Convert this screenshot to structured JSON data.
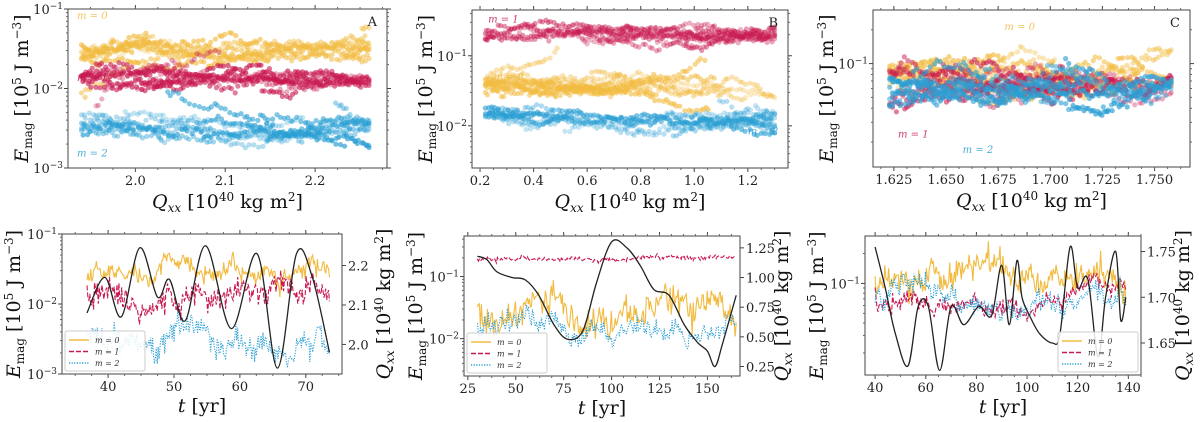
{
  "colors": {
    "m0": "#f2bb40",
    "m1": "#c8184f",
    "m2": "#2a9fd4",
    "qxx": "#222222"
  },
  "chart_data": [
    {
      "id": "A",
      "type": "scatter",
      "panel_label": "A",
      "xlabel": "Q_xx [10^40 kg m^2]",
      "ylabel": "E_mag [10^5 J m^-3]",
      "xlim": [
        1.925,
        2.28
      ],
      "ylim": [
        0.001,
        0.1
      ],
      "yscale": "log",
      "xticks": [
        2.0,
        2.1,
        2.2
      ],
      "xtick_labels": [
        "2.0",
        "2.1",
        "2.2"
      ],
      "yticks": [
        0.001,
        0.01,
        0.1
      ],
      "ytick_labels": [
        "10^-3",
        "10^-2",
        "10^-1"
      ],
      "series_labels": [
        {
          "name": "m = 0",
          "color_key": "m0",
          "pos": [
            1.935,
            0.075
          ]
        },
        {
          "name": "m = 1",
          "color_key": "m1",
          "pos": [
            1.935,
            0.0125
          ]
        },
        {
          "name": "m = 2",
          "color_key": "m2",
          "pos": [
            1.935,
            0.0014
          ]
        }
      ],
      "series": [
        {
          "name": "m = 0",
          "x_range": [
            1.94,
            2.26
          ],
          "y_center": 0.032,
          "y_spread": 0.45
        },
        {
          "name": "m = 1",
          "x_range": [
            1.94,
            2.26
          ],
          "y_center": 0.013,
          "y_spread": 0.4
        },
        {
          "name": "m = 2",
          "x_range": [
            1.94,
            2.26
          ],
          "y_center": 0.0033,
          "y_spread": 0.35
        }
      ]
    },
    {
      "id": "B",
      "type": "scatter",
      "panel_label": "B",
      "xlabel": "Q_xx [10^40 kg m^2]",
      "ylabel": "E_mag [10^5 J m^-3]",
      "xlim": [
        0.17,
        1.35
      ],
      "ylim": [
        0.0025,
        0.45
      ],
      "yscale": "log",
      "xticks": [
        0.2,
        0.4,
        0.6,
        0.8,
        1.0,
        1.2
      ],
      "xtick_labels": [
        "0.2",
        "0.4",
        "0.6",
        "0.8",
        "1.0",
        "1.2"
      ],
      "yticks": [
        0.01,
        0.1
      ],
      "ytick_labels": [
        "10^-2",
        "10^-1"
      ],
      "series_labels": [
        {
          "name": "m = 1",
          "color_key": "m1",
          "pos": [
            0.23,
            0.3
          ]
        },
        {
          "name": "m = 0",
          "color_key": "m0",
          "pos": [
            0.25,
            0.045
          ]
        },
        {
          "name": "m = 2",
          "color_key": "m2",
          "pos": [
            1.2,
            0.0075
          ]
        }
      ],
      "series": [
        {
          "name": "m = 1",
          "x_range": [
            0.22,
            1.3
          ],
          "y_center": 0.2,
          "y_spread": 0.08
        },
        {
          "name": "m = 0",
          "x_range": [
            0.22,
            1.3
          ],
          "y_center": 0.035,
          "y_spread": 0.5
        },
        {
          "name": "m = 2",
          "x_range": [
            0.22,
            1.3
          ],
          "y_center": 0.012,
          "y_spread": 0.35
        }
      ]
    },
    {
      "id": "C",
      "type": "scatter",
      "panel_label": "C",
      "xlabel": "Q_xx [10^40 kg m^2]",
      "ylabel": "E_mag [10^5 J m^-3]",
      "xlim": [
        1.615,
        1.767
      ],
      "ylim": [
        0.012,
        0.3
      ],
      "yscale": "log",
      "xticks": [
        1.625,
        1.65,
        1.675,
        1.7,
        1.725,
        1.75
      ],
      "xtick_labels": [
        "1.625",
        "1.650",
        "1.675",
        "1.700",
        "1.725",
        "1.750"
      ],
      "yticks": [
        0.1
      ],
      "ytick_labels": [
        "10^-1"
      ],
      "series_labels": [
        {
          "name": "m = 0",
          "color_key": "m0",
          "pos": [
            1.678,
            0.2
          ]
        },
        {
          "name": "m = 1",
          "color_key": "m1",
          "pos": [
            1.627,
            0.022
          ]
        },
        {
          "name": "m = 2",
          "color_key": "m2",
          "pos": [
            1.658,
            0.016
          ]
        }
      ],
      "series": [
        {
          "name": "m = 0",
          "x_range": [
            1.623,
            1.758
          ],
          "y_center": 0.08,
          "y_spread": 0.25
        },
        {
          "name": "m = 1",
          "x_range": [
            1.623,
            1.758
          ],
          "y_center": 0.065,
          "y_spread": 0.2
        },
        {
          "name": "m = 2",
          "x_range": [
            1.623,
            1.758
          ],
          "y_center": 0.06,
          "y_spread": 0.22
        }
      ]
    },
    {
      "id": "D",
      "type": "line",
      "xlabel": "t [yr]",
      "ylabel": "E_mag [10^5 J m^-3]",
      "y2label": "Q_xx [10^40 kg m^2]",
      "xlim": [
        33,
        75.5
      ],
      "ylim": [
        0.001,
        0.1
      ],
      "yscale": "log",
      "y2lim": [
        1.925,
        2.28
      ],
      "xticks": [
        40,
        50,
        60,
        70
      ],
      "xtick_labels": [
        "40",
        "50",
        "60",
        "70"
      ],
      "yticks": [
        0.001,
        0.01,
        0.1
      ],
      "ytick_labels": [
        "10^-3",
        "10^-2",
        "10^-1"
      ],
      "y2ticks": [
        2.0,
        2.1,
        2.2
      ],
      "y2tick_labels": [
        "2.0",
        "2.1",
        "2.2"
      ],
      "legend": {
        "position": "lower-left",
        "entries": [
          "m = 0",
          "m = 1",
          "m = 2"
        ]
      },
      "t_range": [
        36.8,
        73.6
      ],
      "series": [
        {
          "name": "m = 0",
          "style": "solid",
          "y_center": 0.028,
          "y_spread": 0.25
        },
        {
          "name": "m = 1",
          "style": "dashed",
          "y_center": 0.013,
          "y_spread": 0.3
        },
        {
          "name": "m = 2",
          "style": "dotted",
          "y_center": 0.0035,
          "y_spread": 0.3
        }
      ],
      "qxx": {
        "t": [
          36.8,
          39.5,
          42,
          44.8,
          47.5,
          49.3,
          51.7,
          54.8,
          58.7,
          62.6,
          65.7,
          68.6,
          71,
          73.6
        ],
        "values": [
          2.08,
          2.17,
          2.07,
          2.245,
          2.12,
          2.165,
          2.06,
          2.25,
          2.04,
          2.23,
          1.94,
          2.23,
          2.17,
          1.98
        ]
      }
    },
    {
      "id": "E",
      "type": "line",
      "xlabel": "t [yr]",
      "ylabel": "E_mag [10^5 J m^-3]",
      "y2label": "Q_xx [10^40 kg m^2]",
      "xlim": [
        23,
        167
      ],
      "ylim": [
        0.0025,
        0.45
      ],
      "yscale": "log",
      "y2lim": [
        0.17,
        1.35
      ],
      "xticks": [
        25,
        50,
        75,
        100,
        125,
        150
      ],
      "xtick_labels": [
        "25",
        "50",
        "75",
        "100",
        "125",
        "150"
      ],
      "yticks": [
        0.01,
        0.1
      ],
      "ytick_labels": [
        "10^-2",
        "10^-1"
      ],
      "y2ticks": [
        0.25,
        0.5,
        0.75,
        1.0,
        1.25
      ],
      "y2tick_labels": [
        "0.25",
        "0.50",
        "0.75",
        "1.00",
        "1.25"
      ],
      "legend": {
        "position": "lower-left",
        "entries": [
          "m = 0",
          "m = 1",
          "m = 2"
        ]
      },
      "t_range": [
        30,
        165
      ],
      "series": [
        {
          "name": "m = 0",
          "style": "solid",
          "y_center": 0.035,
          "y_spread": 0.45
        },
        {
          "name": "m = 1",
          "style": "dashed",
          "y_center": 0.19,
          "y_spread": 0.07
        },
        {
          "name": "m = 2",
          "style": "dotted",
          "y_center": 0.014,
          "y_spread": 0.3
        }
      ],
      "qxx": {
        "t": [
          30,
          35,
          40,
          48,
          55,
          62,
          70,
          77,
          85,
          92,
          100,
          108,
          115,
          122,
          130,
          138,
          145,
          150,
          154,
          158,
          165
        ],
        "values": [
          1.18,
          1.15,
          1.05,
          1.0,
          0.98,
          0.85,
          0.6,
          0.48,
          0.55,
          0.95,
          1.3,
          1.25,
          1.1,
          0.9,
          0.85,
          0.6,
          0.45,
          0.38,
          0.25,
          0.45,
          0.85
        ]
      }
    },
    {
      "id": "F",
      "type": "line",
      "xlabel": "t [yr]",
      "ylabel": "E_mag [10^5 J m^-3]",
      "y2label": "Q_xx [10^40 kg m^2]",
      "xlim": [
        36,
        145
      ],
      "ylim": [
        0.012,
        0.3
      ],
      "yscale": "log",
      "y2lim": [
        1.615,
        1.767
      ],
      "xticks": [
        40,
        60,
        80,
        100,
        120,
        140
      ],
      "xtick_labels": [
        "40",
        "60",
        "80",
        "100",
        "120",
        "140"
      ],
      "yticks": [
        0.1
      ],
      "ytick_labels": [
        "10^-1"
      ],
      "y2ticks": [
        1.65,
        1.7,
        1.75
      ],
      "y2tick_labels": [
        "1.65",
        "1.70",
        "1.75"
      ],
      "legend": {
        "position": "lower-right",
        "entries": [
          "m = 0",
          "m = 1",
          "m = 2"
        ]
      },
      "t_range": [
        40,
        139
      ],
      "series": [
        {
          "name": "m = 0",
          "style": "solid",
          "y_center": 0.1,
          "y_spread": 0.25
        },
        {
          "name": "m = 1",
          "style": "dashed",
          "y_center": 0.068,
          "y_spread": 0.15
        },
        {
          "name": "m = 2",
          "style": "dotted",
          "y_center": 0.06,
          "y_spread": 0.2
        }
      ],
      "qxx": {
        "t": [
          40,
          44,
          48,
          53,
          57,
          61,
          65.5,
          70,
          75,
          81,
          86,
          90,
          93,
          96,
          98,
          101,
          105,
          110,
          113,
          117,
          120,
          124,
          128,
          131,
          135,
          137,
          139
        ],
        "values": [
          1.755,
          1.71,
          1.66,
          1.625,
          1.69,
          1.69,
          1.62,
          1.69,
          1.67,
          1.69,
          1.68,
          1.735,
          1.67,
          1.74,
          1.7,
          1.68,
          1.66,
          1.65,
          1.66,
          1.755,
          1.71,
          1.72,
          1.635,
          1.7,
          1.75,
          1.675,
          1.7
        ]
      }
    }
  ],
  "panels_layout_note": "top row: scatter of E_mag vs Q_xx; bottom row: time series of E_mag (left axis) and Q_xx (right axis, black)",
  "axis_labels": {
    "emag_main": "E",
    "emag_sub": "mag",
    "emag_unit": "[10",
    "emag_exp": "5",
    "emag_unit2": " J m",
    "emag_unit_exp": "−3",
    "emag_close": "]",
    "qxx_main": "Q",
    "qxx_sub": "xx",
    "qxx_unit": "[10",
    "qxx_exp": "40",
    "qxx_unit2": " kg m",
    "qxx_unit_exp": "2",
    "qxx_close": "]",
    "t_main": "t",
    "t_unit": " [yr]"
  }
}
